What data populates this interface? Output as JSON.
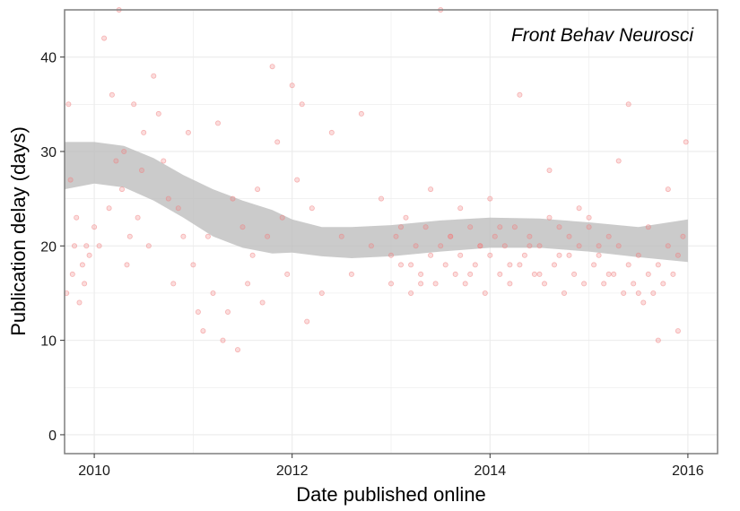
{
  "chart_data": {
    "type": "scatter",
    "title": "",
    "annotation": "Front Behav Neurosci",
    "xlabel": "Date published online",
    "ylabel": "Publication delay (days)",
    "xlim": [
      2009.7,
      2016.3
    ],
    "ylim": [
      -2,
      45
    ],
    "x_ticks": [
      {
        "value": 2010,
        "label": "2010"
      },
      {
        "value": 2012,
        "label": "2012"
      },
      {
        "value": 2014,
        "label": "2014"
      },
      {
        "value": 2016,
        "label": "2016"
      }
    ],
    "y_ticks": [
      {
        "value": 0,
        "label": "0"
      },
      {
        "value": 10,
        "label": "10"
      },
      {
        "value": 20,
        "label": "20"
      },
      {
        "value": 30,
        "label": "30"
      },
      {
        "value": 40,
        "label": "40"
      }
    ],
    "grid": true,
    "colors": {
      "points": "#f08080",
      "band": "#bdbdbd",
      "grid": "#ebebeb",
      "frame": "#7f7f7f"
    },
    "smooth_band": {
      "x": [
        2009.7,
        2010.0,
        2010.3,
        2010.6,
        2010.9,
        2011.2,
        2011.5,
        2011.8,
        2012.0,
        2012.3,
        2012.6,
        2013.0,
        2013.5,
        2014.0,
        2014.5,
        2015.0,
        2015.5,
        2016.0
      ],
      "lower": [
        26.0,
        26.6,
        26.2,
        24.8,
        23.0,
        21.0,
        19.8,
        19.2,
        19.3,
        18.9,
        18.7,
        18.9,
        19.4,
        19.8,
        19.8,
        19.4,
        18.8,
        18.3
      ],
      "upper": [
        31.0,
        31.0,
        30.6,
        29.3,
        27.5,
        26.0,
        24.8,
        23.8,
        22.8,
        22.0,
        22.0,
        22.2,
        22.7,
        23.0,
        22.9,
        22.5,
        22.0,
        22.8
      ]
    },
    "series": [
      {
        "x": [
          2009.72,
          2009.74,
          2009.76,
          2009.78,
          2009.8,
          2009.82,
          2009.85,
          2009.88,
          2009.9,
          2009.92,
          2009.95,
          2010.0,
          2010.05,
          2010.1,
          2010.15,
          2010.18,
          2010.22,
          2010.25,
          2010.28,
          2010.3,
          2010.33,
          2010.36,
          2010.4,
          2010.44,
          2010.48,
          2010.5,
          2010.55,
          2010.6,
          2010.65,
          2010.7,
          2010.75,
          2010.8,
          2010.85,
          2010.9,
          2010.95,
          2011.0,
          2011.05,
          2011.1,
          2011.15,
          2011.2,
          2011.25,
          2011.3,
          2011.35,
          2011.4,
          2011.45,
          2011.5,
          2011.55,
          2011.6,
          2011.65,
          2011.7,
          2011.75,
          2011.8,
          2011.85,
          2011.9,
          2011.95,
          2012.0,
          2012.05,
          2012.1,
          2012.15,
          2012.2,
          2012.3,
          2012.4,
          2012.5,
          2012.6,
          2012.7,
          2012.8,
          2012.9,
          2013.0,
          2013.1,
          2013.2,
          2013.3,
          2013.4,
          2013.5,
          2013.6,
          2013.7,
          2013.8,
          2013.9,
          2014.0,
          2014.1,
          2014.2,
          2014.3,
          2014.4,
          2014.5,
          2014.6,
          2014.7,
          2014.8,
          2014.9,
          2015.0,
          2015.1,
          2015.2,
          2015.3,
          2015.4,
          2015.5,
          2015.6,
          2015.7,
          2015.8,
          2015.9,
          2015.98
        ],
        "y": [
          15,
          35,
          27,
          17,
          20,
          23,
          14,
          18,
          16,
          20,
          19,
          22,
          20,
          42,
          24,
          36,
          29,
          45,
          26,
          30,
          18,
          21,
          35,
          23,
          28,
          32,
          20,
          38,
          34,
          29,
          25,
          16,
          24,
          21,
          32,
          18,
          13,
          11,
          21,
          15,
          33,
          10,
          13,
          25,
          9,
          22,
          16,
          19,
          26,
          14,
          21,
          39,
          31,
          23,
          17,
          37,
          27,
          35,
          12,
          24,
          15,
          32,
          21,
          17,
          34,
          20,
          25,
          19,
          22,
          18,
          16,
          26,
          45,
          21,
          24,
          17,
          20,
          25,
          22,
          18,
          36,
          20,
          17,
          28,
          22,
          19,
          24,
          23,
          20,
          17,
          29,
          35,
          15,
          22,
          10,
          26,
          11,
          31
        ]
      },
      {
        "x": [
          2013.0,
          2013.05,
          2013.1,
          2013.15,
          2013.2,
          2013.25,
          2013.3,
          2013.35,
          2013.4,
          2013.45,
          2013.5,
          2013.55,
          2013.6,
          2013.65,
          2013.7,
          2013.75,
          2013.8,
          2013.85,
          2013.9,
          2013.95,
          2014.0,
          2014.05,
          2014.1,
          2014.15,
          2014.2,
          2014.25,
          2014.3,
          2014.35,
          2014.4,
          2014.45,
          2014.5,
          2014.55,
          2014.6,
          2014.65,
          2014.7,
          2014.75,
          2014.8,
          2014.85,
          2014.9,
          2014.95,
          2015.0,
          2015.05,
          2015.1,
          2015.15,
          2015.2,
          2015.25,
          2015.3,
          2015.35,
          2015.4,
          2015.45,
          2015.5,
          2015.55,
          2015.6,
          2015.65,
          2015.7,
          2015.75,
          2015.8,
          2015.85,
          2015.9,
          2015.95
        ],
        "y": [
          16,
          21,
          18,
          23,
          15,
          20,
          17,
          22,
          19,
          16,
          20,
          18,
          21,
          17,
          19,
          16,
          22,
          18,
          20,
          15,
          19,
          21,
          17,
          20,
          16,
          22,
          18,
          19,
          21,
          17,
          20,
          16,
          23,
          18,
          19,
          15,
          21,
          17,
          20,
          16,
          22,
          18,
          19,
          16,
          21,
          17,
          20,
          15,
          18,
          16,
          19,
          14,
          17,
          15,
          18,
          16,
          20,
          17,
          19,
          21
        ]
      }
    ]
  }
}
